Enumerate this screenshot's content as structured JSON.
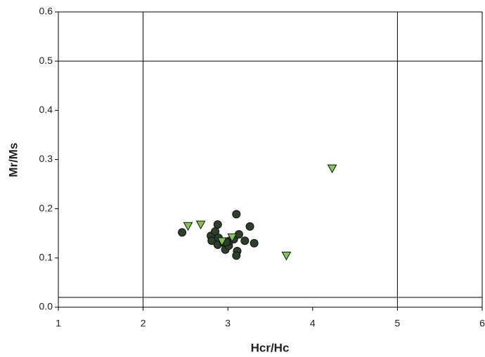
{
  "chart_data": {
    "type": "scatter",
    "x_label": "Hcr/Hc",
    "y_label": "Mr/Ms",
    "xlim": [
      1,
      6
    ],
    "xticks": [
      1,
      2,
      3,
      4,
      5,
      6
    ],
    "ylim": [
      0,
      0.6
    ],
    "yticks": [
      {
        "value": 0,
        "label": "0.0"
      },
      0.1,
      0.2,
      0.3,
      0.4,
      0.5,
      0.6
    ],
    "reference_x": [
      2,
      5
    ],
    "reference_y": [
      0.5,
      0.02
    ],
    "series": [
      {
        "marker": "circle",
        "color": "#2b3f2b",
        "x": [
          2.46,
          2.88,
          2.8,
          2.85,
          2.81,
          2.88,
          2.89,
          2.95,
          2.97,
          3.01,
          3.02,
          3.07,
          3.1,
          3.13,
          3.11,
          3.1,
          3.2,
          3.26,
          3.31,
          2.98
        ],
        "values": [
          0.152,
          0.168,
          0.145,
          0.154,
          0.135,
          0.127,
          0.141,
          0.131,
          0.117,
          0.125,
          0.135,
          0.138,
          0.189,
          0.148,
          0.114,
          0.105,
          0.135,
          0.164,
          0.13,
          0.132
        ]
      },
      {
        "marker": "triangle-down",
        "color": "#7ec850",
        "x": [
          2.53,
          2.68,
          2.93,
          3.05,
          3.69,
          4.23
        ],
        "values": [
          0.165,
          0.168,
          0.134,
          0.142,
          0.105,
          0.282
        ]
      }
    ]
  }
}
